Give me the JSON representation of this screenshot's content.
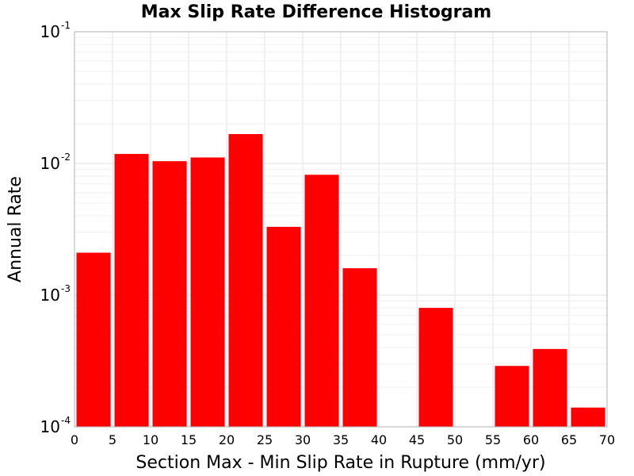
{
  "chart_data": {
    "type": "bar",
    "title": "Max Slip Rate Difference Histogram",
    "xlabel": "Section Max - Min Slip Rate in Rupture (mm/yr)",
    "ylabel": "Annual Rate",
    "yscale": "log",
    "xlim": [
      0,
      70
    ],
    "ylim": [
      0.0001,
      0.1
    ],
    "bin_width": 5,
    "grid": true,
    "bar_color": "#ff0000",
    "x_ticks": [
      "0",
      "5",
      "10",
      "15",
      "20",
      "25",
      "30",
      "35",
      "40",
      "45",
      "50",
      "55",
      "60",
      "65",
      "70"
    ],
    "y_ticks": [
      {
        "base": "10",
        "exp": "-4",
        "value": 0.0001
      },
      {
        "base": "10",
        "exp": "-3",
        "value": 0.001
      },
      {
        "base": "10",
        "exp": "-2",
        "value": 0.01
      },
      {
        "base": "10",
        "exp": "-1",
        "value": 0.1
      }
    ],
    "bins": [
      {
        "start": 0,
        "end": 5,
        "value": 0.0021
      },
      {
        "start": 5,
        "end": 10,
        "value": 0.0118
      },
      {
        "start": 10,
        "end": 15,
        "value": 0.0104
      },
      {
        "start": 15,
        "end": 20,
        "value": 0.0111
      },
      {
        "start": 20,
        "end": 25,
        "value": 0.0167
      },
      {
        "start": 25,
        "end": 30,
        "value": 0.0033
      },
      {
        "start": 30,
        "end": 35,
        "value": 0.0082
      },
      {
        "start": 35,
        "end": 40,
        "value": 0.0016
      },
      {
        "start": 40,
        "end": 45,
        "value": 0
      },
      {
        "start": 45,
        "end": 50,
        "value": 0.0008
      },
      {
        "start": 50,
        "end": 55,
        "value": 0
      },
      {
        "start": 55,
        "end": 60,
        "value": 0.00029
      },
      {
        "start": 60,
        "end": 65,
        "value": 0.00039
      },
      {
        "start": 65,
        "end": 70,
        "value": 0.00014
      }
    ]
  }
}
